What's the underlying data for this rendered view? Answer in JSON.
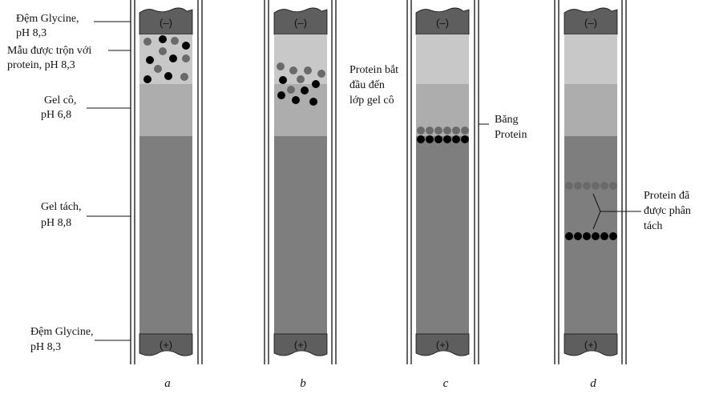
{
  "colors": {
    "buffer_cap": "#5e5e5e",
    "sample_zone": "#c8c8c8",
    "stacking_gel": "#adadad",
    "separating_gel": "#7e7e7e",
    "dot_gray": "#6a6a6a",
    "dot_black": "#000000",
    "line": "#111111"
  },
  "electrodes": {
    "top": "(–)",
    "bottom": "(+)"
  },
  "panel_captions": [
    "a",
    "b",
    "c",
    "d"
  ],
  "labels": {
    "a": {
      "upper_buffer": [
        "Đệm Glycine,",
        "pH 8,3"
      ],
      "sample": [
        "Mẫu được trộn với",
        "protein, pH 8,3"
      ],
      "stacking_gel": [
        "Gel cô,",
        "pH 6,8"
      ],
      "separating_gel": [
        "Gel tách,",
        "pH 8,8"
      ],
      "lower_buffer": [
        "Đệm Glycine,",
        "pH 8,3"
      ]
    },
    "b": {
      "note": [
        "Protein bắt",
        "đầu đến",
        "lớp gel cô"
      ]
    },
    "c": {
      "note": [
        "Băng",
        "Protein"
      ]
    },
    "d": {
      "note": [
        "Protein đã",
        "được phân",
        "tách"
      ]
    }
  }
}
